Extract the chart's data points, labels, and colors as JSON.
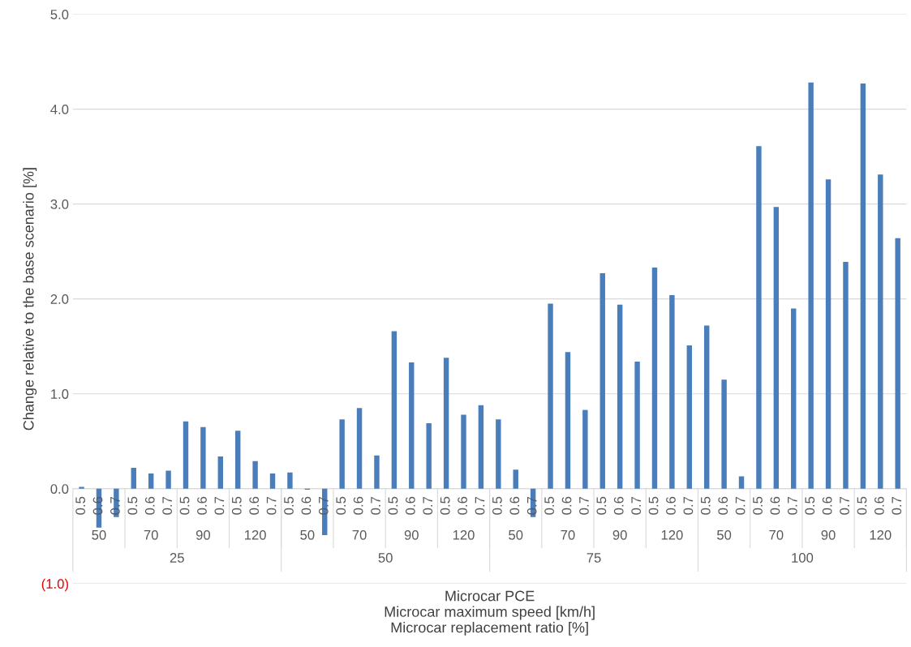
{
  "chart_data": {
    "type": "bar",
    "ylabel": "Change relative to the base scenario [%]",
    "xlabel": "Microcar PCE\nMicrocar maximum speed [km/h]\nMicrocar replacement ratio [%]",
    "categories": [
      "0.5",
      "0.6",
      "0.7",
      "0.5",
      "0.6",
      "0.7",
      "0.5",
      "0.6",
      "0.7",
      "0.5",
      "0.6",
      "0.7",
      "0.5",
      "0.6",
      "0.7",
      "0.5",
      "0.6",
      "0.7",
      "0.5",
      "0.6",
      "0.7",
      "0.5",
      "0.6",
      "0.7",
      "0.5",
      "0.6",
      "0.7",
      "0.5",
      "0.6",
      "0.7",
      "0.5",
      "0.6",
      "0.7",
      "0.5",
      "0.6",
      "0.7",
      "0.5",
      "0.6",
      "0.7",
      "0.5",
      "0.6",
      "0.7",
      "0.5",
      "0.6",
      "0.7",
      "0.5",
      "0.6",
      "0.7"
    ],
    "values": [
      0.02,
      -0.41,
      -0.3,
      0.22,
      0.16,
      0.19,
      0.71,
      0.65,
      0.34,
      0.61,
      0.29,
      0.16,
      0.17,
      -0.01,
      -0.49,
      0.73,
      0.85,
      0.35,
      1.66,
      1.33,
      0.69,
      1.38,
      0.78,
      0.88,
      0.73,
      0.2,
      -0.3,
      1.95,
      1.44,
      0.83,
      2.27,
      1.94,
      1.34,
      2.33,
      2.04,
      1.51,
      1.72,
      1.15,
      0.13,
      3.61,
      2.97,
      1.9,
      4.28,
      3.26,
      2.39,
      4.27,
      3.31,
      2.64
    ],
    "color": "#4a7ebb",
    "annotations": [
      "50",
      "70",
      "90",
      "120",
      "50",
      "70",
      "90",
      "120",
      "50",
      "70",
      "90",
      "120",
      "50",
      "70",
      "90",
      "120",
      "25",
      "50",
      "75",
      "100"
    ],
    "ylim": [
      -1.0,
      5.0
    ],
    "yticks": [
      {
        "value": -1.0,
        "label": "(1.0)"
      },
      {
        "value": 0,
        "label": "0.0"
      },
      {
        "value": 1,
        "label": "1.0"
      },
      {
        "value": 2,
        "label": "2.0"
      },
      {
        "value": 3,
        "label": "3.0"
      },
      {
        "value": 4,
        "label": "4.0"
      },
      {
        "value": 5,
        "label": "5.0"
      }
    ],
    "grid": "y",
    "legend": false
  }
}
